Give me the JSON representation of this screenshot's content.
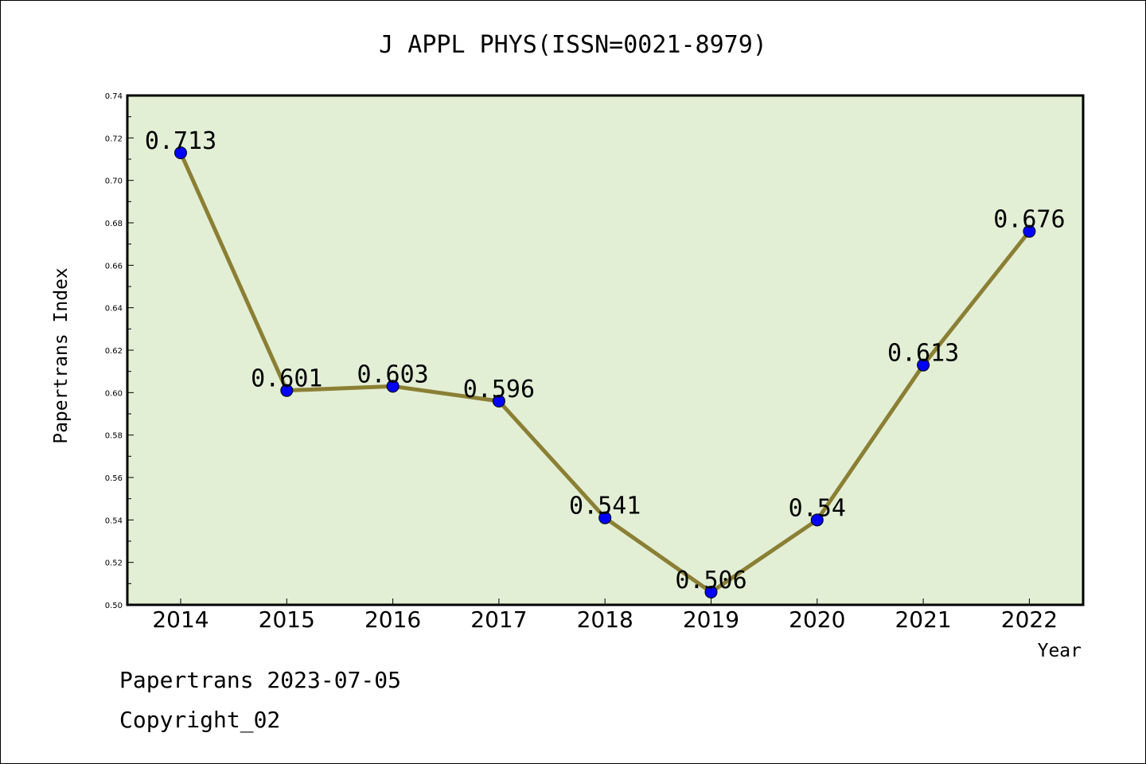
{
  "chart_data": {
    "type": "line",
    "title": "J APPL PHYS(ISSN=0021-8979)",
    "xlabel": "Year",
    "ylabel": "Papertrans Index",
    "categories": [
      "2014",
      "2015",
      "2016",
      "2017",
      "2018",
      "2019",
      "2020",
      "2021",
      "2022"
    ],
    "values": [
      0.713,
      0.601,
      0.603,
      0.596,
      0.541,
      0.506,
      0.54,
      0.613,
      0.676
    ],
    "data_labels": [
      "0.713",
      "0.601",
      "0.603",
      "0.596",
      "0.541",
      "0.506",
      "0.54",
      "0.613",
      "0.676"
    ],
    "ylim": [
      0.5,
      0.74
    ],
    "yticks": [
      "0.50",
      "0.52",
      "0.54",
      "0.56",
      "0.58",
      "0.60",
      "0.62",
      "0.64",
      "0.66",
      "0.68",
      "0.70",
      "0.72",
      "0.74"
    ],
    "grid": false,
    "colors": {
      "plot_background": "#e2efd5",
      "line": "#8b7f34",
      "marker": "#0000ff"
    }
  },
  "footer": {
    "line1": "Papertrans 2023-07-05",
    "line2": "Copyright_02"
  }
}
